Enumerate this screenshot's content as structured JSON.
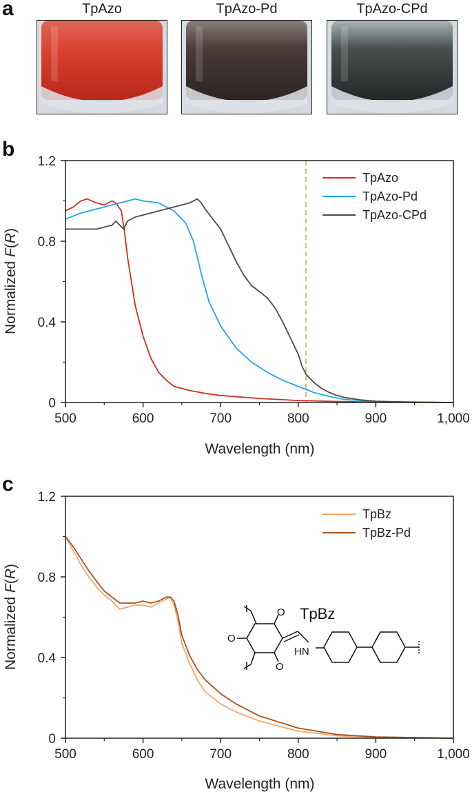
{
  "panels": {
    "a": "a",
    "b": "b",
    "c": "c"
  },
  "photos": [
    {
      "label": "TpAzo",
      "powder_color": "#c8321e"
    },
    {
      "label": "TpAzo-Pd",
      "powder_color": "#3a2c2a"
    },
    {
      "label": "TpAzo-CPd",
      "powder_color": "#2f3232"
    }
  ],
  "structure": {
    "label": "TpBz",
    "o_top": "O",
    "o_left": "O",
    "o_bottom": "O",
    "hn": "HN"
  },
  "chart_data": [
    {
      "type": "line",
      "panel": "b",
      "xlabel": "Wavelength (nm)",
      "ylabel_prefix": "Normalized ",
      "ylabel_italic_F": "F",
      "ylabel_open": "(",
      "ylabel_italic_R": "R",
      "ylabel_close": ")",
      "xlim": [
        500,
        1000
      ],
      "ylim": [
        0,
        1.2
      ],
      "xticks": [
        500,
        600,
        700,
        800,
        900,
        1000
      ],
      "xticklabels": [
        "500",
        "600",
        "700",
        "800",
        "900",
        "1,000"
      ],
      "yticks": [
        0,
        0.4,
        0.8,
        1.2
      ],
      "yticklabels": [
        "0",
        "0.4",
        "0.8",
        "1.2"
      ],
      "vline": {
        "x": 810,
        "color": "#b8c48c"
      },
      "legend_position": "top-right",
      "series": [
        {
          "name": "TpAzo",
          "color": "#d62b20",
          "x": [
            500,
            510,
            520,
            528,
            540,
            550,
            560,
            565,
            572,
            576,
            580,
            585,
            590,
            600,
            610,
            620,
            630,
            640,
            660,
            680,
            700,
            750,
            800,
            850,
            900,
            1000
          ],
          "y": [
            0.95,
            0.97,
            1.0,
            1.01,
            0.99,
            0.98,
            1.0,
            0.99,
            0.95,
            0.85,
            0.72,
            0.6,
            0.48,
            0.33,
            0.22,
            0.15,
            0.11,
            0.08,
            0.06,
            0.045,
            0.035,
            0.02,
            0.01,
            0.005,
            0.002,
            0.0
          ]
        },
        {
          "name": "TpAzo-Pd",
          "color": "#1ea7ee",
          "x": [
            500,
            520,
            540,
            560,
            580,
            590,
            600,
            620,
            640,
            655,
            665,
            675,
            685,
            700,
            720,
            740,
            760,
            780,
            800,
            820,
            840,
            860,
            900,
            1000
          ],
          "y": [
            0.91,
            0.94,
            0.96,
            0.98,
            1.0,
            1.01,
            1.0,
            0.99,
            0.95,
            0.89,
            0.8,
            0.64,
            0.5,
            0.38,
            0.27,
            0.2,
            0.15,
            0.11,
            0.08,
            0.05,
            0.03,
            0.015,
            0.005,
            0.0
          ]
        },
        {
          "name": "TpAzo-CPd",
          "color": "#4a4a4a",
          "x": [
            500,
            520,
            540,
            560,
            565,
            570,
            575,
            580,
            590,
            600,
            620,
            640,
            660,
            670,
            675,
            680,
            690,
            700,
            710,
            720,
            730,
            740,
            750,
            760,
            770,
            780,
            790,
            800,
            805,
            810,
            820,
            830,
            840,
            850,
            860,
            880,
            900,
            950,
            1000
          ],
          "y": [
            0.86,
            0.86,
            0.86,
            0.88,
            0.9,
            0.88,
            0.86,
            0.9,
            0.92,
            0.93,
            0.95,
            0.97,
            0.99,
            1.01,
            0.99,
            0.96,
            0.91,
            0.86,
            0.78,
            0.7,
            0.63,
            0.58,
            0.55,
            0.52,
            0.47,
            0.4,
            0.32,
            0.24,
            0.18,
            0.14,
            0.1,
            0.07,
            0.05,
            0.035,
            0.025,
            0.013,
            0.006,
            0.001,
            0.0
          ]
        }
      ]
    },
    {
      "type": "line",
      "panel": "c",
      "xlabel": "Wavelength (nm)",
      "ylabel_prefix": "Normalized ",
      "ylabel_italic_F": "F",
      "ylabel_open": "(",
      "ylabel_italic_R": "R",
      "ylabel_close": ")",
      "xlim": [
        500,
        1000
      ],
      "ylim": [
        0,
        1.2
      ],
      "xticks": [
        500,
        600,
        700,
        800,
        900,
        1000
      ],
      "xticklabels": [
        "500",
        "600",
        "700",
        "800",
        "900",
        "1,000"
      ],
      "yticks": [
        0,
        0.4,
        0.8,
        1.2
      ],
      "yticklabels": [
        "0",
        "0.4",
        "0.8",
        "1.2"
      ],
      "legend_position": "top-right",
      "series": [
        {
          "name": "TpBz",
          "color": "#f4a56a",
          "x": [
            500,
            510,
            520,
            530,
            540,
            550,
            560,
            570,
            580,
            590,
            600,
            610,
            620,
            630,
            635,
            640,
            645,
            650,
            660,
            670,
            680,
            700,
            720,
            750,
            800,
            850,
            900,
            1000
          ],
          "y": [
            1.0,
            0.93,
            0.86,
            0.8,
            0.75,
            0.71,
            0.68,
            0.64,
            0.65,
            0.66,
            0.66,
            0.65,
            0.67,
            0.69,
            0.7,
            0.66,
            0.58,
            0.47,
            0.37,
            0.29,
            0.23,
            0.17,
            0.13,
            0.085,
            0.035,
            0.012,
            0.004,
            0.0
          ]
        },
        {
          "name": "TpBz-Pd",
          "color": "#a8531a",
          "x": [
            500,
            510,
            520,
            530,
            540,
            550,
            560,
            570,
            580,
            590,
            600,
            610,
            620,
            630,
            635,
            640,
            645,
            650,
            660,
            670,
            680,
            700,
            720,
            750,
            800,
            850,
            900,
            1000
          ],
          "y": [
            1.0,
            0.95,
            0.89,
            0.83,
            0.78,
            0.73,
            0.7,
            0.67,
            0.67,
            0.67,
            0.68,
            0.67,
            0.68,
            0.7,
            0.7,
            0.68,
            0.61,
            0.51,
            0.41,
            0.34,
            0.29,
            0.22,
            0.17,
            0.11,
            0.05,
            0.018,
            0.006,
            0.0
          ]
        }
      ]
    }
  ]
}
